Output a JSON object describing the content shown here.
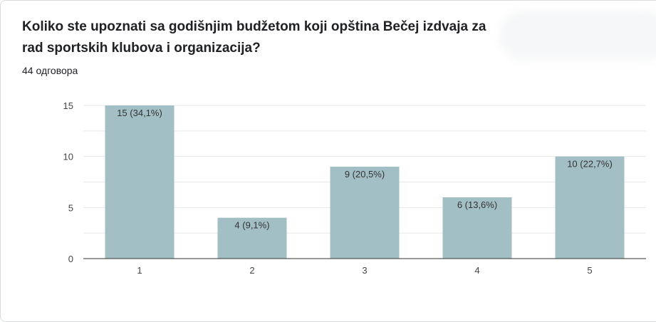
{
  "question": {
    "title": "Koliko ste upoznati sa godišnjim budžetom koji opština Bečej izdvaja za rad sportskih klubova i organizacija?",
    "responses": "44 одговора"
  },
  "colors": {
    "bar": "#a3bfc6",
    "grid": "#e8e8e8",
    "axis": "#333333"
  },
  "chart_data": {
    "type": "bar",
    "categories": [
      "1",
      "2",
      "3",
      "4",
      "5"
    ],
    "values": [
      15,
      4,
      9,
      6,
      10
    ],
    "data_labels": [
      "15 (34,1%)",
      "4 (9,1%)",
      "9 (20,5%)",
      "6 (13,6%)",
      "10 (22,7%)"
    ],
    "y_ticks": [
      "0",
      "5",
      "10",
      "15"
    ],
    "ylim": [
      0,
      15
    ],
    "grid": true,
    "title": "",
    "xlabel": "",
    "ylabel": ""
  }
}
